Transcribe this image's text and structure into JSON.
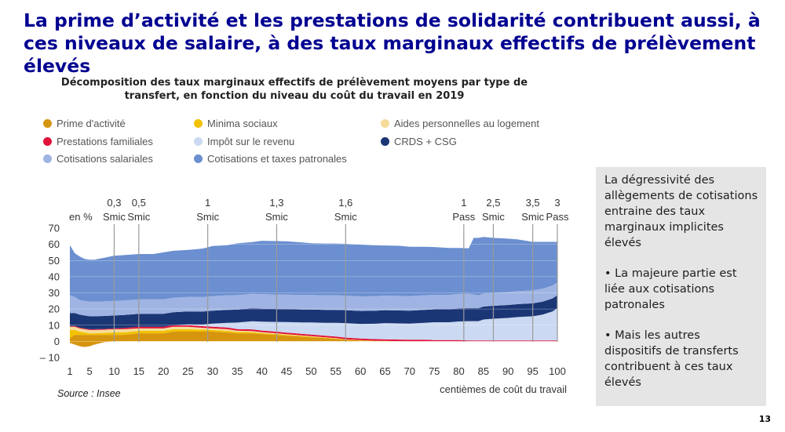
{
  "slide": {
    "title": "La prime d’activité et les prestations de solidarité contribuent aussi, à ces niveaux de salaire, à des taux marginaux effectifs de prélèvement élevés",
    "side_paragraphs": [
      "La dégressivité des allègements de cotisations entraine des taux marginaux implicites élevés",
      "•  La majeure partie est liée aux cotisations patronales",
      "•   Mais les autres dispositifs de transferts contribuent à ces taux élevés"
    ],
    "page_number": "13"
  },
  "chart_data": {
    "type": "area",
    "title": "Décomposition des taux marginaux effectifs de prélèvement moyens par type de transfert, en fonction du niveau du coût du travail en 2019",
    "xlabel": "centièmes de coût du travail",
    "ylabel": "en %",
    "source": "Source : Insee",
    "xlim": [
      1,
      100
    ],
    "ylim": [
      -10,
      70
    ],
    "x_ticks": [
      1,
      5,
      10,
      15,
      20,
      25,
      30,
      35,
      40,
      45,
      50,
      55,
      60,
      65,
      70,
      75,
      80,
      85,
      90,
      95,
      100
    ],
    "y_ticks": [
      {
        "value": 70,
        "label": "70"
      },
      {
        "value": 60,
        "label": "60"
      },
      {
        "value": 50,
        "label": "50"
      },
      {
        "value": 40,
        "label": "40"
      },
      {
        "value": 30,
        "label": "30"
      },
      {
        "value": 20,
        "label": "20"
      },
      {
        "value": 10,
        "label": "10"
      },
      {
        "value": 0,
        "label": "0"
      },
      {
        "value": -10,
        "label": "– 10"
      }
    ],
    "reference_lines": [
      {
        "x": 10,
        "label_top": "0,3",
        "label_bottom": "Smic"
      },
      {
        "x": 15,
        "label_top": "0,5",
        "label_bottom": "Smic"
      },
      {
        "x": 29,
        "label_top": "1",
        "label_bottom": "Smic"
      },
      {
        "x": 43,
        "label_top": "1,3",
        "label_bottom": "Smic"
      },
      {
        "x": 57,
        "label_top": "1,6",
        "label_bottom": "Smic"
      },
      {
        "x": 81,
        "label_top": "1",
        "label_bottom": "Pass"
      },
      {
        "x": 87,
        "label_top": "2,5",
        "label_bottom": "Smic"
      },
      {
        "x": 95,
        "label_top": "3,5",
        "label_bottom": "Smic"
      },
      {
        "x": 100,
        "label_top": "3",
        "label_bottom": "Pass"
      }
    ],
    "anchor_x": [
      1,
      2,
      3,
      4,
      5,
      6,
      8,
      10,
      12,
      15,
      18,
      20,
      22,
      25,
      28,
      30,
      33,
      35,
      38,
      40,
      43,
      45,
      48,
      50,
      53,
      55,
      57,
      60,
      63,
      65,
      68,
      70,
      73,
      75,
      78,
      80,
      82,
      83,
      84,
      85,
      87,
      90,
      92,
      95,
      97,
      99,
      100
    ],
    "series": [
      {
        "name": "Prime d'activité",
        "color": "#d6950f",
        "values": [
          2,
          4,
          4,
          4,
          4,
          4,
          4,
          4,
          4,
          5,
          5,
          5,
          6,
          6,
          6,
          6,
          5.5,
          5,
          5,
          4.5,
          4,
          3.5,
          3,
          2.5,
          2,
          1.5,
          1,
          0.5,
          0.3,
          0.2,
          0.1,
          0,
          0,
          0,
          0,
          0,
          0,
          0,
          0,
          0,
          0,
          0,
          0,
          0,
          0,
          0,
          0
        ]
      },
      {
        "name": "Minima sociaux",
        "color": "#f2c200",
        "values": [
          5,
          3,
          2,
          1.5,
          1,
          1,
          1.2,
          1.5,
          1.5,
          1.5,
          1.5,
          1.5,
          1.5,
          1.5,
          1.2,
          1,
          1,
          0.8,
          0.7,
          0.6,
          0.5,
          0.5,
          0.4,
          0.4,
          0.3,
          0.3,
          0.2,
          0.2,
          0.1,
          0.1,
          0,
          0,
          0,
          0,
          0,
          0,
          0,
          0,
          0,
          0,
          0,
          0,
          0,
          0,
          0,
          0,
          0
        ]
      },
      {
        "name": "Aides personnelles au logement",
        "color": "#f6dc9a",
        "values": [
          2,
          2,
          2,
          2,
          2,
          2,
          2,
          2,
          2,
          1.5,
          1.5,
          1.5,
          1.5,
          1.5,
          1.2,
          1,
          1,
          0.8,
          0.7,
          0.6,
          0.5,
          0.4,
          0.3,
          0.3,
          0.2,
          0.2,
          0.1,
          0.1,
          0,
          0,
          0,
          0,
          0,
          0,
          0,
          0,
          0,
          0,
          0,
          0,
          0,
          0,
          0,
          0,
          0,
          0,
          0
        ]
      },
      {
        "name": "Prestations familiales",
        "color": "#e1133a",
        "values": [
          0.5,
          0.5,
          0.5,
          0.5,
          0.5,
          0.5,
          0.5,
          0.5,
          0.8,
          1,
          1,
          1,
          1,
          1,
          1,
          1,
          1,
          1,
          1,
          1,
          1,
          1,
          1,
          1,
          1,
          1,
          1,
          1,
          1,
          1,
          1,
          1,
          1,
          0.8,
          0.8,
          0.8,
          0.5,
          0.5,
          0.5,
          0.5,
          0.5,
          0.5,
          0.5,
          0.5,
          0.5,
          0.5,
          0.5
        ]
      },
      {
        "name": "Impôt sur le revenu",
        "color": "#cbd9f2",
        "values": [
          0,
          0,
          0,
          0,
          0,
          0,
          0,
          0,
          0,
          0,
          0,
          0,
          0,
          0.5,
          1,
          2,
          3,
          4,
          5,
          5.5,
          6,
          6.5,
          7,
          7.5,
          8,
          8.5,
          9,
          9,
          9.5,
          10,
          10,
          10,
          10.5,
          11,
          11,
          11.5,
          12,
          12,
          12,
          13,
          13.5,
          14,
          14.5,
          15,
          16,
          18,
          20
        ]
      },
      {
        "name": "CRDS + CSG",
        "color": "#1b3675",
        "values": [
          8,
          8,
          8,
          8,
          8,
          8,
          8,
          8,
          8,
          8,
          8,
          8,
          8,
          8,
          8,
          8,
          8,
          8,
          8,
          8,
          8,
          8,
          8,
          8,
          8,
          8,
          8,
          8,
          8,
          8,
          8,
          8,
          8,
          8,
          8,
          8,
          8,
          8,
          8,
          8,
          8,
          8,
          8,
          8,
          8,
          8,
          8
        ]
      },
      {
        "name": "Cotisations salariales",
        "color": "#9fb4e3",
        "values": [
          11,
          10,
          9,
          9,
          9,
          9,
          9,
          9,
          9,
          9,
          9,
          9,
          9,
          9,
          9,
          9,
          9,
          9,
          9,
          9,
          9,
          9,
          9,
          9,
          9,
          9,
          9,
          9,
          9,
          9,
          9,
          9,
          9,
          9,
          9,
          9,
          9,
          8.5,
          8,
          8,
          8,
          8,
          8,
          8,
          8,
          8,
          8
        ]
      },
      {
        "name": "Cotisations et taxes patronales",
        "color": "#6b8fd0",
        "values": [
          31,
          27,
          27,
          26,
          26,
          26,
          27,
          28,
          28,
          28,
          28,
          29,
          29,
          29,
          30,
          31,
          31,
          32,
          32,
          33,
          33,
          33,
          32.5,
          32,
          32,
          32,
          32,
          32,
          31.5,
          31,
          31,
          30.5,
          30,
          29.5,
          29,
          28.5,
          28,
          35,
          35.5,
          35,
          34,
          33,
          32,
          30,
          29,
          27,
          25
        ]
      }
    ],
    "negative_series": [
      {
        "name": "Prime d'activité",
        "color": "#d6950f",
        "values": [
          -1,
          -2,
          -3,
          -3.5,
          -3,
          -2,
          -0.5,
          0,
          0,
          0,
          0,
          0,
          0,
          0,
          0,
          0,
          0,
          0,
          0,
          0,
          0,
          0,
          0,
          0,
          0,
          0,
          0,
          0,
          0,
          0,
          0,
          0,
          0,
          0,
          0,
          0,
          0,
          0,
          0,
          0,
          0,
          0,
          0,
          0,
          0,
          0,
          0
        ]
      }
    ],
    "legend": [
      {
        "name": "Prime d'activité",
        "color": "#d6950f"
      },
      {
        "name": "Minima sociaux",
        "color": "#f2c200"
      },
      {
        "name": "Aides personnelles au logement",
        "color": "#f6dc9a"
      },
      {
        "name": "Prestations familiales",
        "color": "#e1133a"
      },
      {
        "name": "Impôt sur le revenu",
        "color": "#cbd9f2"
      },
      {
        "name": "CRDS + CSG",
        "color": "#1b3675"
      },
      {
        "name": "Cotisations salariales",
        "color": "#9fb4e3"
      },
      {
        "name": "Cotisations et taxes patronales",
        "color": "#6b8fd0"
      }
    ]
  }
}
